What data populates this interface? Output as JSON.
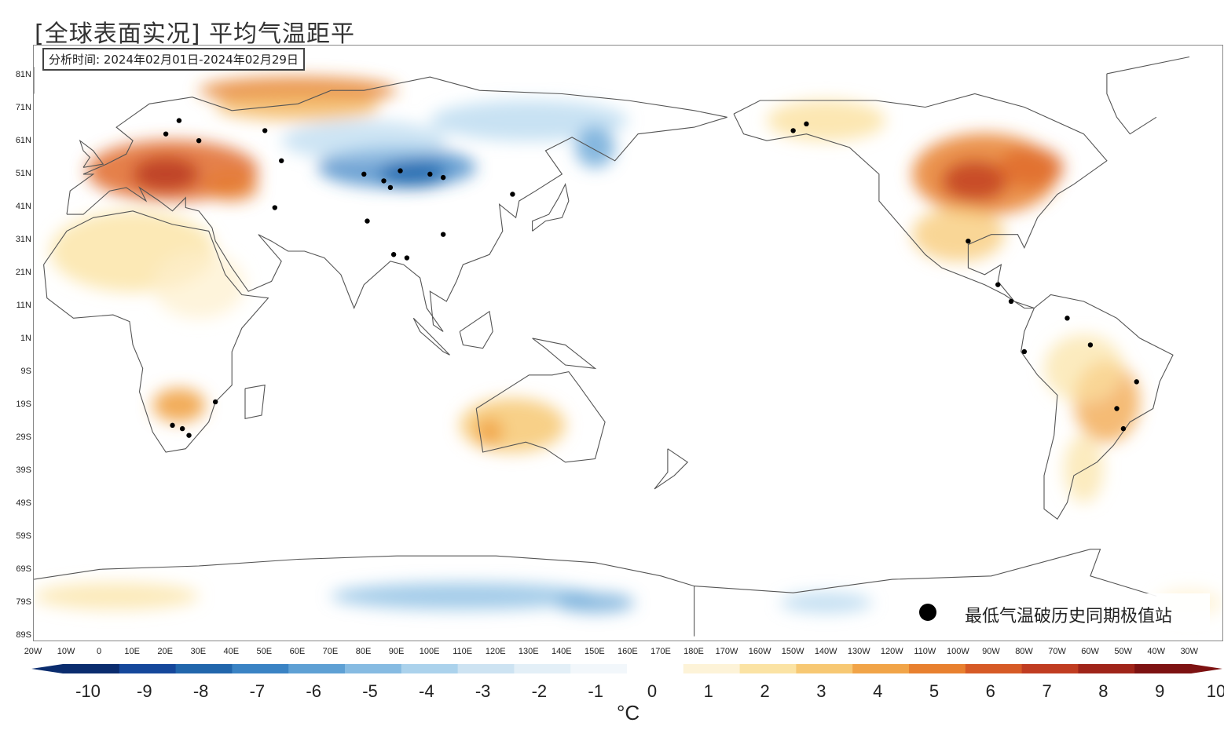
{
  "title": "[全球表面实况] 平均气温距平",
  "analysis_period": "分析时间: 2024年02月01日-2024年02月29日",
  "legend": {
    "marker_label": "最低气温破历史同期极值站"
  },
  "lat_labels": [
    "81N",
    "71N",
    "61N",
    "51N",
    "41N",
    "31N",
    "21N",
    "11N",
    "1N",
    "9S",
    "19S",
    "29S",
    "39S",
    "49S",
    "59S",
    "69S",
    "79S",
    "89S"
  ],
  "lon_labels": [
    "20W",
    "10W",
    "0",
    "10E",
    "20E",
    "30E",
    "40E",
    "50E",
    "60E",
    "70E",
    "80E",
    "90E",
    "100E",
    "110E",
    "120E",
    "130E",
    "140E",
    "150E",
    "160E",
    "170E",
    "180E",
    "170W",
    "160W",
    "150W",
    "140W",
    "130W",
    "120W",
    "110W",
    "100W",
    "90W",
    "80W",
    "70W",
    "60W",
    "50W",
    "40W",
    "30W"
  ],
  "colorbar": {
    "ticks": [
      "-10",
      "-9",
      "-8",
      "-7",
      "-6",
      "-5",
      "-4",
      "-3",
      "-2",
      "-1",
      "0",
      "1",
      "2",
      "3",
      "4",
      "5",
      "6",
      "7",
      "8",
      "9",
      "10"
    ],
    "unit": "°C",
    "colors": [
      "#0a2c6e",
      "#15479b",
      "#2166ac",
      "#3a83c4",
      "#5ea0d4",
      "#86bbe2",
      "#abd2ec",
      "#cde3f2",
      "#e3eff7",
      "#f2f7fb",
      "#ffffff",
      "#fdf3d8",
      "#fbe3a4",
      "#f7c873",
      "#f1a448",
      "#e8802f",
      "#d65a26",
      "#c03c21",
      "#9f2419",
      "#7d1212"
    ]
  },
  "stations": [
    {
      "name": "europe-north",
      "lon": 20,
      "lat": 60
    },
    {
      "name": "europe-scandinavia",
      "lon": 24,
      "lat": 64
    },
    {
      "name": "europe-east",
      "lon": 30,
      "lat": 58
    },
    {
      "name": "russia-west",
      "lon": 50,
      "lat": 61
    },
    {
      "name": "kazakhstan",
      "lon": 55,
      "lat": 52
    },
    {
      "name": "caucasus",
      "lon": 53,
      "lat": 38
    },
    {
      "name": "west-siberia",
      "lon": 80,
      "lat": 48
    },
    {
      "name": "central-asia-1",
      "lon": 86,
      "lat": 46
    },
    {
      "name": "central-asia-2",
      "lon": 88,
      "lat": 44
    },
    {
      "name": "central-asia-3",
      "lon": 91,
      "lat": 49
    },
    {
      "name": "mongolia-1",
      "lon": 100,
      "lat": 48
    },
    {
      "name": "mongolia-2",
      "lon": 104,
      "lat": 47
    },
    {
      "name": "india-north",
      "lon": 81,
      "lat": 34
    },
    {
      "name": "india-east",
      "lon": 89,
      "lat": 24
    },
    {
      "name": "bangladesh",
      "lon": 93,
      "lat": 23
    },
    {
      "name": "china-south",
      "lon": 104,
      "lat": 30
    },
    {
      "name": "korea",
      "lon": 125,
      "lat": 42
    },
    {
      "name": "south-africa-1",
      "lon": 22,
      "lat": -27
    },
    {
      "name": "south-africa-2",
      "lon": 25,
      "lat": -28
    },
    {
      "name": "south-africa-3",
      "lon": 27,
      "lat": -30
    },
    {
      "name": "mozambique",
      "lon": 35,
      "lat": -20
    },
    {
      "name": "alaska-1",
      "lon": -150,
      "lat": 61
    },
    {
      "name": "alaska-2",
      "lon": -146,
      "lat": 63
    },
    {
      "name": "mexico",
      "lon": -97,
      "lat": 28
    },
    {
      "name": "central-america",
      "lon": -88,
      "lat": 15
    },
    {
      "name": "colombia",
      "lon": -84,
      "lat": 10
    },
    {
      "name": "brazil-north",
      "lon": -67,
      "lat": 5
    },
    {
      "name": "brazil-west",
      "lon": -80,
      "lat": -5
    },
    {
      "name": "brazil-central",
      "lon": -60,
      "lat": -3
    },
    {
      "name": "brazil-east",
      "lon": -46,
      "lat": -14
    },
    {
      "name": "brazil-south",
      "lon": -52,
      "lat": -22
    },
    {
      "name": "paraguay",
      "lon": -50,
      "lat": -28
    }
  ]
}
